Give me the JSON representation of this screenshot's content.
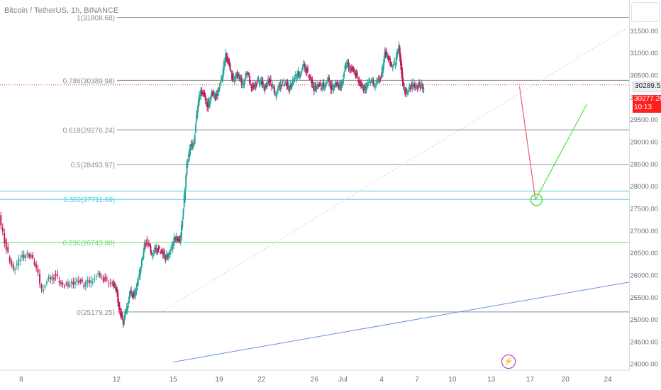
{
  "window": {
    "title": "Bitcoin / TetherUS, 1h, BINANCE"
  },
  "badges": {
    "current_price": "30289.52",
    "last_price": "30277.26",
    "countdown": "10:13"
  },
  "icons": {
    "corner": "chart-settings-box",
    "event": "lightning-icon"
  },
  "colors": {
    "up": "#26a69a",
    "down": "#c2185b",
    "fib_gray": "#8c8f99",
    "fib_blue": "#4dd0e1",
    "fib_green": "#66e066",
    "trend": "#6c8ee8",
    "projection_down": "#ef5b6b",
    "projection_up": "#55dd44",
    "current_line": "#d32f2f"
  },
  "chart_data": {
    "type": "candlestick",
    "symbol": "Bitcoin / TetherUS",
    "interval": "1h",
    "exchange": "BINANCE",
    "ylim": [
      23900,
      32200
    ],
    "yticks": [
      24000,
      24500,
      25000,
      25500,
      26000,
      26500,
      27000,
      27500,
      28000,
      28500,
      29000,
      29500,
      30000,
      30500,
      31000,
      31500
    ],
    "ytick_labels": [
      "24000.00",
      "24500.00",
      "25000.00",
      "25500.00",
      "26000.00",
      "26500.00",
      "27000.00",
      "27500.00",
      "28000.00",
      "28500.00",
      "29000.00",
      "29500.00",
      "30000.00",
      "30500.00",
      "31000.00",
      "31500.00"
    ],
    "x_day_range": [
      7.4,
      25.2
    ],
    "xticks": [
      {
        "day": 8,
        "label": "8"
      },
      {
        "day": 10.7,
        "label": "12"
      },
      {
        "day": 12.3,
        "label": "15"
      },
      {
        "day": 13.6,
        "label": "19"
      },
      {
        "day": 14.8,
        "label": "22"
      },
      {
        "day": 16.3,
        "label": "26"
      },
      {
        "day": 17.1,
        "label": "Jul"
      },
      {
        "day": 18.2,
        "label": "4"
      },
      {
        "day": 19.2,
        "label": "7"
      },
      {
        "day": 20.2,
        "label": "10"
      },
      {
        "day": 21.3,
        "label": "13"
      },
      {
        "day": 22.4,
        "label": "17"
      },
      {
        "day": 23.4,
        "label": "20"
      },
      {
        "day": 24.6,
        "label": "24"
      }
    ],
    "price_path": [
      [
        7.4,
        27300
      ],
      [
        7.6,
        26600
      ],
      [
        7.8,
        26100
      ],
      [
        8.0,
        26400
      ],
      [
        8.2,
        26500
      ],
      [
        8.4,
        26300
      ],
      [
        8.6,
        25700
      ],
      [
        8.8,
        25900
      ],
      [
        9.0,
        26000
      ],
      [
        9.2,
        25750
      ],
      [
        9.4,
        25800
      ],
      [
        9.6,
        25900
      ],
      [
        9.8,
        25800
      ],
      [
        10.0,
        25900
      ],
      [
        10.2,
        26000
      ],
      [
        10.4,
        25900
      ],
      [
        10.6,
        25800
      ],
      [
        10.7,
        25700
      ],
      [
        10.8,
        25200
      ],
      [
        10.9,
        24950
      ],
      [
        11.0,
        25300
      ],
      [
        11.1,
        25600
      ],
      [
        11.2,
        25550
      ],
      [
        11.3,
        25800
      ],
      [
        11.4,
        26200
      ],
      [
        11.5,
        26700
      ],
      [
        11.6,
        26750
      ],
      [
        11.7,
        26500
      ],
      [
        11.8,
        26550
      ],
      [
        11.9,
        26600
      ],
      [
        12.0,
        26500
      ],
      [
        12.1,
        26400
      ],
      [
        12.2,
        26500
      ],
      [
        12.3,
        26700
      ],
      [
        12.4,
        26900
      ],
      [
        12.5,
        26700
      ],
      [
        12.6,
        27500
      ],
      [
        12.7,
        28500
      ],
      [
        12.8,
        28900
      ],
      [
        12.9,
        29000
      ],
      [
        13.0,
        29800
      ],
      [
        13.1,
        30200
      ],
      [
        13.2,
        30000
      ],
      [
        13.3,
        29800
      ],
      [
        13.4,
        30100
      ],
      [
        13.5,
        30000
      ],
      [
        13.6,
        30200
      ],
      [
        13.7,
        30500
      ],
      [
        13.8,
        31000
      ],
      [
        13.9,
        30700
      ],
      [
        14.0,
        30400
      ],
      [
        14.1,
        30500
      ],
      [
        14.2,
        30450
      ],
      [
        14.3,
        30300
      ],
      [
        14.4,
        30600
      ],
      [
        14.5,
        30300
      ],
      [
        14.6,
        30200
      ],
      [
        14.7,
        30400
      ],
      [
        14.8,
        30350
      ],
      [
        14.9,
        30200
      ],
      [
        15.0,
        30400
      ],
      [
        15.1,
        30300
      ],
      [
        15.2,
        30100
      ],
      [
        15.3,
        30200
      ],
      [
        15.4,
        30350
      ],
      [
        15.5,
        30300
      ],
      [
        15.6,
        30200
      ],
      [
        15.7,
        30400
      ],
      [
        15.8,
        30500
      ],
      [
        15.9,
        30550
      ],
      [
        16.0,
        30700
      ],
      [
        16.1,
        30600
      ],
      [
        16.2,
        30400
      ],
      [
        16.3,
        30200
      ],
      [
        16.4,
        30300
      ],
      [
        16.5,
        30250
      ],
      [
        16.6,
        30300
      ],
      [
        16.7,
        30400
      ],
      [
        16.8,
        30200
      ],
      [
        16.9,
        30300
      ],
      [
        17.0,
        30250
      ],
      [
        17.1,
        30350
      ],
      [
        17.2,
        30800
      ],
      [
        17.3,
        30700
      ],
      [
        17.4,
        30600
      ],
      [
        17.5,
        30500
      ],
      [
        17.6,
        30300
      ],
      [
        17.7,
        30200
      ],
      [
        17.8,
        30300
      ],
      [
        17.9,
        30400
      ],
      [
        18.0,
        30300
      ],
      [
        18.1,
        30350
      ],
      [
        18.2,
        30500
      ],
      [
        18.3,
        31000
      ],
      [
        18.4,
        30900
      ],
      [
        18.5,
        30700
      ],
      [
        18.6,
        30800
      ],
      [
        18.7,
        31200
      ],
      [
        18.8,
        30300
      ],
      [
        18.9,
        30100
      ],
      [
        19.0,
        30200
      ],
      [
        19.1,
        30300
      ],
      [
        19.2,
        30250
      ],
      [
        19.3,
        30300
      ],
      [
        19.4,
        30200
      ]
    ],
    "fib_levels": [
      {
        "ratio": "1",
        "price": 31808.68,
        "label": "1(31808.68)",
        "color": "gray"
      },
      {
        "ratio": "0.786",
        "price": 30389.98,
        "label": "0.786(30389.98)",
        "color": "gray"
      },
      {
        "ratio": "0.618",
        "price": 29276.24,
        "label": "0.618(29276.24)",
        "color": "gray"
      },
      {
        "ratio": "0.5",
        "price": 28493.97,
        "label": "0.5(28493.97)",
        "color": "gray"
      },
      {
        "ratio": "0.382",
        "price": 27711.69,
        "label": "0.382(27711.69)",
        "color": "blue"
      },
      {
        "ratio": "0.236",
        "price": 26743.8,
        "label": "0.236(26743.80)",
        "color": "green"
      },
      {
        "ratio": "0",
        "price": 25179.25,
        "label": "0(25179.25)",
        "color": "gray"
      }
    ],
    "extra_levels": [
      {
        "price": 27900,
        "color": "blue"
      }
    ],
    "current_price": 30289.52,
    "last_price": 30277.26,
    "trend_line": {
      "from": [
        12.3,
        24050
      ],
      "to": [
        25.2,
        25850
      ]
    },
    "dotted_trend": {
      "from": [
        12.0,
        25200
      ],
      "to": [
        25.2,
        31600
      ]
    },
    "projection": [
      [
        22.1,
        30250
      ],
      [
        22.55,
        27700
      ],
      [
        24.0,
        29850
      ]
    ],
    "projection_circle": [
      22.58,
      27700
    ]
  }
}
